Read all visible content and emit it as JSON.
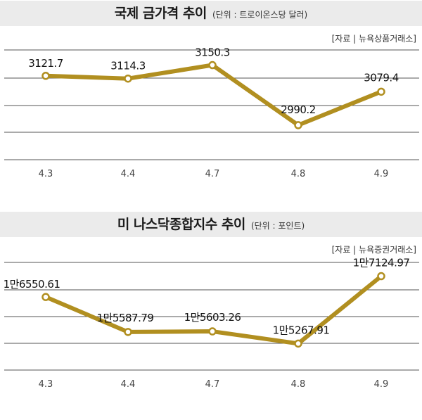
{
  "chart_data": [
    {
      "type": "line",
      "title": "국제 금가격 추이",
      "unit": "(단위 : 트로이온스당 달러)",
      "source": "[자료 | 뉴욕상품거래소]",
      "categories": [
        "4.3",
        "4.4",
        "4.7",
        "4.8",
        "4.9"
      ],
      "values": [
        3121.7,
        3114.3,
        3150.3,
        2990.2,
        3079.4
      ],
      "labels": [
        "3121.7",
        "3114.3",
        "3150.3",
        "2990.2",
        "3079.4"
      ],
      "ylim": [
        2900,
        3200
      ],
      "grid": true,
      "colors": {
        "line": "#b18f20",
        "grid": "#555555"
      }
    },
    {
      "type": "line",
      "title": "미 나스닥종합지수 추이",
      "unit": "(단위 : 포인트)",
      "source": "[자료 | 뉴욕증권거래소]",
      "categories": [
        "4.3",
        "4.4",
        "4.7",
        "4.8",
        "4.9"
      ],
      "values": [
        16550.61,
        15587.79,
        15603.26,
        15267.91,
        17124.97
      ],
      "labels": [
        "1만6550.61",
        "1만5587.79",
        "1만5603.26",
        "1만5267.91",
        "1만7124.97"
      ],
      "ylim": [
        14500,
        17600
      ],
      "grid": true,
      "colors": {
        "line": "#b18f20",
        "grid": "#555555"
      }
    }
  ]
}
